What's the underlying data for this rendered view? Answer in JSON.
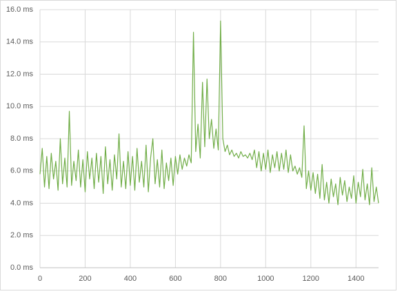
{
  "chart_data": {
    "type": "line",
    "x": [
      0,
      10,
      20,
      30,
      40,
      50,
      60,
      70,
      80,
      90,
      100,
      110,
      120,
      130,
      140,
      150,
      160,
      170,
      180,
      190,
      200,
      210,
      220,
      230,
      240,
      250,
      260,
      270,
      280,
      290,
      300,
      310,
      320,
      330,
      340,
      350,
      360,
      370,
      380,
      390,
      400,
      410,
      420,
      430,
      440,
      450,
      460,
      470,
      480,
      490,
      500,
      510,
      520,
      530,
      540,
      550,
      560,
      570,
      580,
      590,
      600,
      610,
      620,
      630,
      640,
      650,
      660,
      670,
      680,
      690,
      700,
      710,
      720,
      730,
      740,
      750,
      760,
      770,
      780,
      790,
      800,
      810,
      820,
      830,
      840,
      850,
      860,
      870,
      880,
      890,
      900,
      910,
      920,
      930,
      940,
      950,
      960,
      970,
      980,
      990,
      1000,
      1010,
      1020,
      1030,
      1040,
      1050,
      1060,
      1070,
      1080,
      1090,
      1100,
      1110,
      1120,
      1130,
      1140,
      1150,
      1160,
      1170,
      1180,
      1190,
      1200,
      1210,
      1220,
      1230,
      1240,
      1250,
      1260,
      1270,
      1280,
      1290,
      1300,
      1310,
      1320,
      1330,
      1340,
      1350,
      1360,
      1370,
      1380,
      1390,
      1400,
      1410,
      1420,
      1430,
      1440,
      1450,
      1460,
      1470,
      1480,
      1490,
      1500
    ],
    "series": [
      {
        "color": "#70ad47",
        "values": [
          5.8,
          7.4,
          5.0,
          6.9,
          4.9,
          7.1,
          5.5,
          6.6,
          4.8,
          8.0,
          5.2,
          6.8,
          5.0,
          9.7,
          5.1,
          6.6,
          5.4,
          7.3,
          5.0,
          6.7,
          4.7,
          7.2,
          5.5,
          6.8,
          4.9,
          7.1,
          5.3,
          6.9,
          4.6,
          7.5,
          5.2,
          6.7,
          4.8,
          7.0,
          5.5,
          8.3,
          5.0,
          6.6,
          4.9,
          7.2,
          5.1,
          6.9,
          4.8,
          7.4,
          5.3,
          6.6,
          5.0,
          7.6,
          4.7,
          6.8,
          8.0,
          5.2,
          6.7,
          5.0,
          7.3,
          4.9,
          6.5,
          5.4,
          6.8,
          5.1,
          6.9,
          5.8,
          7.0,
          6.1,
          6.8,
          6.3,
          7.0,
          6.5,
          14.6,
          7.2,
          8.9,
          6.8,
          11.5,
          7.5,
          11.7,
          8.0,
          9.2,
          7.4,
          8.6,
          7.3,
          15.3,
          8.0,
          7.2,
          7.6,
          7.0,
          7.3,
          6.9,
          7.1,
          6.8,
          7.2,
          6.9,
          7.0,
          6.8,
          7.1,
          6.7,
          7.3,
          6.2,
          7.2,
          6.0,
          7.1,
          6.1,
          7.3,
          5.9,
          7.0,
          6.2,
          7.2,
          6.0,
          7.1,
          6.1,
          7.3,
          5.9,
          7.0,
          6.0,
          6.3,
          5.8,
          6.2,
          5.6,
          8.8,
          4.9,
          6.0,
          4.8,
          5.9,
          4.6,
          5.8,
          4.3,
          6.4,
          4.2,
          5.3,
          4.0,
          5.5,
          4.4,
          5.2,
          3.9,
          5.6,
          4.5,
          5.4,
          4.1,
          5.0,
          4.3,
          5.7,
          4.0,
          5.3,
          4.4,
          6.1,
          4.2,
          5.2,
          3.9,
          6.2,
          4.1,
          5.0,
          4.0
        ]
      }
    ],
    "xlim": [
      0,
      1500
    ],
    "xticks": [
      0,
      200,
      400,
      600,
      800,
      1000,
      1200,
      1400
    ],
    "ylim": [
      0,
      16
    ],
    "yticks": [
      {
        "value": 0,
        "label": "0.0 ms"
      },
      {
        "value": 2,
        "label": "2.0 ms"
      },
      {
        "value": 4,
        "label": "4.0 ms"
      },
      {
        "value": 6,
        "label": "6.0 ms"
      },
      {
        "value": 8,
        "label": "8.0 ms"
      },
      {
        "value": 10,
        "label": "10.0 ms"
      },
      {
        "value": 12,
        "label": "12.0 ms"
      },
      {
        "value": 14,
        "label": "14.0 ms"
      },
      {
        "value": 16,
        "label": "16.0 ms"
      }
    ],
    "grid": true
  }
}
